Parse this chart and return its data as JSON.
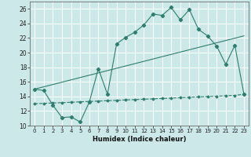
{
  "title": "",
  "xlabel": "Humidex (Indice chaleur)",
  "ylabel": "",
  "bg_color": "#cce8e8",
  "grid_color": "#ffffff",
  "line_color": "#2e7d6e",
  "xlim": [
    -0.5,
    23.5
  ],
  "ylim": [
    10,
    27
  ],
  "yticks": [
    10,
    12,
    14,
    16,
    18,
    20,
    22,
    24,
    26
  ],
  "xticks": [
    0,
    1,
    2,
    3,
    4,
    5,
    6,
    7,
    8,
    9,
    10,
    11,
    12,
    13,
    14,
    15,
    16,
    17,
    18,
    19,
    20,
    21,
    22,
    23
  ],
  "line1_x": [
    0,
    1,
    2,
    3,
    4,
    5,
    6,
    7,
    8,
    9,
    10,
    11,
    12,
    13,
    14,
    15,
    16,
    17,
    18,
    19,
    20,
    21,
    22,
    23
  ],
  "line1_y": [
    15.0,
    14.8,
    12.8,
    11.1,
    11.2,
    10.5,
    13.2,
    17.8,
    14.3,
    21.2,
    22.1,
    22.8,
    23.8,
    25.3,
    25.1,
    26.2,
    24.5,
    25.9,
    23.2,
    22.3,
    20.9,
    18.4,
    21.0,
    14.3
  ],
  "line2_x": [
    0,
    23
  ],
  "line2_y": [
    15.0,
    22.3
  ],
  "line3_x": [
    0,
    23
  ],
  "line3_y": [
    13.0,
    14.3
  ],
  "line3_dashed_x": [
    0,
    1,
    2,
    3,
    4,
    5,
    6,
    7,
    8,
    9,
    10,
    11,
    12,
    13,
    14,
    15,
    16,
    17,
    18,
    19,
    20,
    21,
    22,
    23
  ],
  "line3_dashed_y": [
    13.0,
    13.05,
    13.1,
    13.15,
    13.2,
    13.26,
    13.31,
    13.36,
    13.41,
    13.46,
    13.52,
    13.57,
    13.62,
    13.67,
    13.72,
    13.77,
    13.83,
    13.88,
    13.93,
    13.98,
    14.03,
    14.09,
    14.14,
    14.3
  ]
}
